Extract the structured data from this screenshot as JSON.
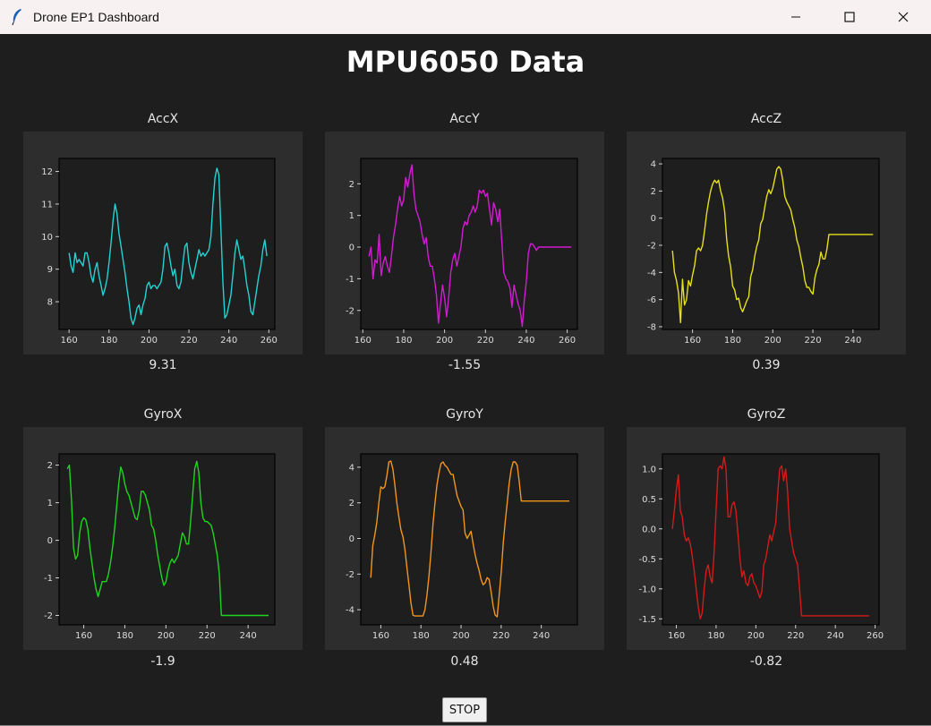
{
  "window": {
    "title": "Drone EP1 Dashboard",
    "icons": {
      "app": "feather-icon",
      "minimize": "minimize-icon",
      "maximize": "maximize-icon",
      "close": "close-icon"
    }
  },
  "main_title": "MPU6050 Data",
  "stop_label": "STOP",
  "chart_data": [
    {
      "type": "line",
      "title": "AccX",
      "value_label": "9.31",
      "color": "#22d3d3",
      "xlim": [
        155,
        263
      ],
      "ylim": [
        7.15,
        12.4
      ],
      "xticks": [
        160,
        180,
        200,
        220,
        240,
        260
      ],
      "yticks": [
        8,
        9,
        10,
        11,
        12
      ],
      "x": [
        160,
        161,
        162,
        163,
        164,
        165,
        166,
        167,
        168,
        169,
        170,
        171,
        172,
        173,
        174,
        175,
        176,
        177,
        178,
        179,
        180,
        181,
        182,
        183,
        184,
        185,
        186,
        187,
        188,
        189,
        190,
        191,
        192,
        193,
        194,
        195,
        196,
        197,
        198,
        199,
        200,
        201,
        202,
        203,
        204,
        205,
        206,
        207,
        208,
        209,
        210,
        211,
        212,
        213,
        214,
        215,
        216,
        217,
        218,
        219,
        220,
        221,
        222,
        223,
        224,
        225,
        226,
        227,
        228,
        229,
        230,
        231,
        232,
        233,
        234,
        235,
        236,
        237,
        238,
        239,
        240,
        241,
        242,
        243,
        244,
        245,
        246,
        247,
        248,
        249,
        250,
        251,
        252,
        253,
        254,
        255,
        256,
        257,
        258,
        259
      ],
      "y": [
        9.5,
        9.1,
        8.9,
        9.5,
        9.2,
        9.3,
        9.2,
        9.1,
        9.5,
        9.5,
        9.2,
        8.8,
        8.6,
        9.0,
        9.2,
        8.8,
        8.5,
        8.2,
        8.4,
        8.7,
        9.2,
        9.8,
        10.5,
        11.0,
        10.7,
        10.1,
        9.7,
        9.3,
        8.9,
        8.4,
        8.0,
        7.5,
        7.3,
        7.5,
        7.8,
        7.9,
        7.6,
        7.9,
        8.1,
        8.5,
        8.6,
        8.4,
        8.5,
        8.5,
        8.4,
        8.5,
        8.6,
        9.0,
        9.7,
        9.8,
        9.5,
        9.1,
        8.8,
        9.0,
        8.5,
        8.4,
        8.6,
        9.2,
        9.7,
        9.8,
        9.2,
        8.9,
        8.7,
        9.0,
        9.3,
        9.6,
        9.4,
        9.5,
        9.4,
        9.5,
        9.6,
        10.0,
        11.0,
        11.8,
        12.1,
        11.9,
        10.2,
        8.6,
        7.5,
        7.6,
        7.9,
        8.2,
        8.8,
        9.5,
        9.9,
        9.6,
        9.3,
        9.4,
        9.0,
        8.5,
        8.2,
        7.7,
        7.6,
        8.0,
        8.4,
        8.8,
        9.1,
        9.6,
        9.9,
        9.4
      ]
    },
    {
      "type": "line",
      "title": "AccY",
      "value_label": "-1.55",
      "color": "#d41ad4",
      "xlim": [
        159,
        265
      ],
      "ylim": [
        -2.6,
        2.8
      ],
      "xticks": [
        160,
        180,
        200,
        220,
        240,
        260
      ],
      "yticks": [
        -2,
        -1,
        0,
        1,
        2
      ],
      "x": [
        163,
        164,
        165,
        166,
        167,
        168,
        169,
        170,
        171,
        172,
        173,
        174,
        175,
        176,
        177,
        178,
        179,
        180,
        181,
        182,
        183,
        184,
        185,
        186,
        187,
        188,
        189,
        190,
        191,
        192,
        193,
        194,
        195,
        196,
        197,
        198,
        199,
        200,
        201,
        202,
        203,
        204,
        205,
        206,
        207,
        208,
        209,
        210,
        211,
        212,
        213,
        214,
        215,
        216,
        217,
        218,
        219,
        220,
        221,
        222,
        223,
        224,
        225,
        226,
        227,
        228,
        229,
        230,
        231,
        232,
        233,
        234,
        235,
        236,
        237,
        238,
        239,
        240,
        241,
        242,
        243,
        244,
        245,
        246,
        247,
        248,
        249,
        250,
        251,
        252,
        253,
        254,
        255,
        256,
        257,
        258,
        259,
        260,
        261,
        262
      ],
      "y": [
        -0.3,
        0.0,
        -1.0,
        -0.4,
        -0.5,
        0.4,
        -0.9,
        -0.5,
        -0.3,
        -0.6,
        -0.8,
        -0.3,
        0.3,
        0.7,
        1.2,
        1.6,
        1.3,
        1.5,
        2.2,
        1.9,
        2.3,
        2.6,
        1.7,
        1.2,
        1.0,
        0.8,
        0.4,
        0.1,
        0.3,
        -0.3,
        -0.6,
        -0.6,
        -1.0,
        -1.5,
        -2.4,
        -1.8,
        -1.2,
        -1.6,
        -2.2,
        -1.6,
        -0.8,
        -0.4,
        -0.2,
        -0.6,
        -0.3,
        0.0,
        0.6,
        0.8,
        0.7,
        1.0,
        1.1,
        1.3,
        1.1,
        1.3,
        1.8,
        1.7,
        1.8,
        1.6,
        1.7,
        1.2,
        0.7,
        1.4,
        1.2,
        0.8,
        1.2,
        0.2,
        -0.8,
        -1.0,
        -1.1,
        -1.3,
        -1.9,
        -1.2,
        -1.5,
        -1.8,
        -2.0,
        -2.5,
        -1.7,
        -1.1,
        -0.2,
        0.1,
        0.1,
        0.0,
        -0.1,
        0.0,
        0.0,
        0.0,
        0.0,
        0.0,
        0.0,
        0.0,
        0.0,
        0.0,
        0.0,
        0.0,
        0.0,
        0.0,
        0.0,
        0.0,
        0.0,
        0.0
      ]
    },
    {
      "type": "line",
      "title": "AccZ",
      "value_label": "0.39",
      "color": "#e6e01a",
      "xlim": [
        145,
        253
      ],
      "ylim": [
        -8.2,
        4.4
      ],
      "xticks": [
        160,
        180,
        200,
        220,
        240
      ],
      "yticks": [
        -8,
        -6,
        -4,
        -2,
        0,
        2,
        4
      ],
      "x": [
        150,
        151,
        152,
        153,
        154,
        155,
        156,
        157,
        158,
        159,
        160,
        161,
        162,
        163,
        164,
        165,
        166,
        167,
        168,
        169,
        170,
        171,
        172,
        173,
        174,
        175,
        176,
        177,
        178,
        179,
        180,
        181,
        182,
        183,
        184,
        185,
        186,
        187,
        188,
        189,
        190,
        191,
        192,
        193,
        194,
        195,
        196,
        197,
        198,
        199,
        200,
        201,
        202,
        203,
        204,
        205,
        206,
        207,
        208,
        209,
        210,
        211,
        212,
        213,
        214,
        215,
        216,
        217,
        218,
        219,
        220,
        221,
        222,
        223,
        224,
        225,
        226,
        227,
        228,
        229,
        230,
        231,
        232,
        233,
        234,
        235,
        236,
        237,
        238,
        239,
        240,
        241,
        242,
        243,
        244,
        245,
        246,
        247,
        248,
        249,
        250
      ],
      "y": [
        -2.4,
        -4.0,
        -4.6,
        -5.5,
        -7.7,
        -4.5,
        -6.4,
        -6.0,
        -4.6,
        -5.0,
        -4.2,
        -3.5,
        -2.4,
        -2.2,
        -2.4,
        -2.0,
        -0.9,
        0.3,
        1.2,
        2.0,
        2.5,
        2.8,
        2.6,
        2.8,
        2.0,
        1.5,
        0.5,
        -1.5,
        -2.8,
        -3.6,
        -5.0,
        -5.3,
        -6.0,
        -5.9,
        -6.6,
        -6.9,
        -6.5,
        -6.1,
        -5.8,
        -4.3,
        -3.8,
        -2.8,
        -2.1,
        -1.6,
        -0.4,
        -0.1,
        0.8,
        1.6,
        2.1,
        1.8,
        2.2,
        2.9,
        3.6,
        3.8,
        3.6,
        2.8,
        1.6,
        1.2,
        0.9,
        0.6,
        -0.1,
        -0.7,
        -1.6,
        -2.1,
        -2.9,
        -3.6,
        -4.6,
        -5.1,
        -5.1,
        -5.4,
        -5.6,
        -4.4,
        -3.8,
        -3.4,
        -2.5,
        -3.0,
        -3.0,
        -2.3,
        -1.2,
        -1.2,
        -1.2,
        -1.2,
        -1.2,
        -1.2,
        -1.2,
        -1.2,
        -1.2,
        -1.2,
        -1.2,
        -1.2,
        -1.2,
        -1.2,
        -1.2,
        -1.2,
        -1.2,
        -1.2,
        -1.2,
        -1.2,
        -1.2,
        -1.2,
        -1.2
      ]
    },
    {
      "type": "line",
      "title": "GyroX",
      "value_label": "-1.9",
      "color": "#1ed41e",
      "xlim": [
        148,
        253
      ],
      "ylim": [
        -2.25,
        2.3
      ],
      "xticks": [
        160,
        180,
        200,
        220,
        240
      ],
      "yticks": [
        -2,
        -1,
        0,
        1,
        2
      ],
      "x": [
        152,
        153,
        154,
        155,
        156,
        157,
        158,
        159,
        160,
        161,
        162,
        163,
        164,
        165,
        166,
        167,
        168,
        169,
        170,
        171,
        172,
        173,
        174,
        175,
        176,
        177,
        178,
        179,
        180,
        181,
        182,
        183,
        184,
        185,
        186,
        187,
        188,
        189,
        190,
        191,
        192,
        193,
        194,
        195,
        196,
        197,
        198,
        199,
        200,
        201,
        202,
        203,
        204,
        205,
        206,
        207,
        208,
        209,
        210,
        211,
        212,
        213,
        214,
        215,
        216,
        217,
        218,
        219,
        220,
        221,
        222,
        223,
        224,
        225,
        226,
        227,
        228,
        229,
        230,
        231,
        232,
        233,
        234,
        235,
        236,
        237,
        238,
        239,
        240,
        241,
        242,
        243,
        244,
        245,
        246,
        247,
        248,
        249,
        250,
        251
      ],
      "y": [
        1.9,
        2.0,
        1.1,
        -0.2,
        -0.5,
        -0.4,
        0.2,
        0.5,
        0.6,
        0.55,
        0.3,
        -0.2,
        -0.6,
        -1.0,
        -1.3,
        -1.5,
        -1.3,
        -1.1,
        -1.1,
        -1.1,
        -0.9,
        -0.6,
        -0.2,
        0.3,
        0.9,
        1.5,
        1.95,
        1.8,
        1.5,
        1.3,
        1.2,
        1.0,
        0.8,
        0.6,
        0.55,
        0.8,
        1.3,
        1.3,
        1.2,
        1.0,
        0.8,
        0.4,
        0.3,
        0.0,
        -0.4,
        -0.7,
        -1.0,
        -1.2,
        -1.1,
        -0.8,
        -0.6,
        -0.5,
        -0.6,
        -0.5,
        -0.4,
        -0.1,
        0.2,
        0.1,
        -0.1,
        -0.1,
        0.5,
        1.2,
        1.9,
        2.1,
        1.8,
        1.0,
        0.6,
        0.5,
        0.5,
        0.45,
        0.4,
        0.2,
        -0.1,
        -0.4,
        -0.9,
        -2.0,
        -2.0,
        -2.0,
        -2.0,
        -2.0,
        -2.0,
        -2.0,
        -2.0,
        -2.0,
        -2.0,
        -2.0,
        -2.0,
        -2.0,
        -2.0,
        -2.0,
        -2.0,
        -2.0,
        -2.0,
        -2.0,
        -2.0,
        -2.0,
        -2.0,
        -2.0,
        -2.0,
        -2.0
      ]
    },
    {
      "type": "line",
      "title": "GyroY",
      "value_label": "0.48",
      "color": "#f0961e",
      "xlim": [
        150,
        258
      ],
      "ylim": [
        -4.85,
        4.75
      ],
      "xticks": [
        160,
        180,
        200,
        220,
        240
      ],
      "yticks": [
        -4,
        -2,
        0,
        2,
        4
      ],
      "x": [
        155,
        156,
        157,
        158,
        159,
        160,
        161,
        162,
        163,
        164,
        165,
        166,
        167,
        168,
        169,
        170,
        171,
        172,
        173,
        174,
        175,
        176,
        177,
        178,
        179,
        180,
        181,
        182,
        183,
        184,
        185,
        186,
        187,
        188,
        189,
        190,
        191,
        192,
        193,
        194,
        195,
        196,
        197,
        198,
        199,
        200,
        201,
        202,
        203,
        204,
        205,
        206,
        207,
        208,
        209,
        210,
        211,
        212,
        213,
        214,
        215,
        216,
        217,
        218,
        219,
        220,
        221,
        222,
        223,
        224,
        225,
        226,
        227,
        228,
        229,
        230,
        231,
        232,
        233,
        234,
        235,
        236,
        237,
        238,
        239,
        240,
        241,
        242,
        243,
        244,
        245,
        246,
        247,
        248,
        249,
        250,
        251,
        252,
        253,
        254
      ],
      "y": [
        -2.2,
        -0.4,
        0.2,
        0.9,
        2.0,
        2.9,
        2.8,
        2.9,
        3.5,
        4.3,
        4.35,
        3.9,
        3.0,
        2.0,
        1.2,
        0.5,
        0.1,
        -0.6,
        -1.6,
        -2.6,
        -3.6,
        -4.3,
        -4.35,
        -4.35,
        -4.35,
        -4.35,
        -4.35,
        -4.0,
        -3.2,
        -2.1,
        -0.8,
        0.8,
        2.0,
        3.0,
        3.7,
        4.2,
        4.3,
        4.1,
        4.0,
        3.8,
        3.6,
        3.6,
        3.0,
        2.4,
        2.1,
        1.8,
        1.6,
        0.3,
        0.0,
        0.2,
        0.4,
        -0.3,
        -0.9,
        -1.4,
        -1.8,
        -2.3,
        -2.6,
        -2.5,
        -2.2,
        -2.3,
        -3.0,
        -3.8,
        -4.3,
        -4.4,
        -3.2,
        -1.9,
        -0.3,
        0.9,
        2.0,
        3.1,
        3.9,
        4.3,
        4.3,
        4.1,
        3.2,
        2.1,
        2.1,
        2.1,
        2.1,
        2.1,
        2.1,
        2.1,
        2.1,
        2.1,
        2.1,
        2.1,
        2.1,
        2.1,
        2.1,
        2.1,
        2.1,
        2.1,
        2.1,
        2.1,
        2.1,
        2.1,
        2.1,
        2.1,
        2.1,
        2.1
      ]
    },
    {
      "type": "line",
      "title": "GyroZ",
      "value_label": "-0.82",
      "color": "#d41a1a",
      "xlim": [
        153,
        262
      ],
      "ylim": [
        -1.6,
        1.25
      ],
      "xticks": [
        160,
        180,
        200,
        220,
        240,
        260
      ],
      "yticks": [
        -1.5,
        -1.0,
        -0.5,
        0.0,
        0.5,
        1.0
      ],
      "x": [
        158,
        159,
        160,
        161,
        162,
        163,
        164,
        165,
        166,
        167,
        168,
        169,
        170,
        171,
        172,
        173,
        174,
        175,
        176,
        177,
        178,
        179,
        180,
        181,
        182,
        183,
        184,
        185,
        186,
        187,
        188,
        189,
        190,
        191,
        192,
        193,
        194,
        195,
        196,
        197,
        198,
        199,
        200,
        201,
        202,
        203,
        204,
        205,
        206,
        207,
        208,
        209,
        210,
        211,
        212,
        213,
        214,
        215,
        216,
        217,
        218,
        219,
        220,
        221,
        222,
        223,
        224,
        225,
        226,
        227,
        228,
        229,
        230,
        231,
        232,
        233,
        234,
        235,
        236,
        237,
        238,
        239,
        240,
        241,
        242,
        243,
        244,
        245,
        246,
        247,
        248,
        249,
        250,
        251,
        252,
        253,
        254,
        255,
        256,
        257
      ],
      "y": [
        0.0,
        0.3,
        0.65,
        0.9,
        0.3,
        0.2,
        -0.1,
        -0.2,
        -0.15,
        -0.25,
        -0.45,
        -0.7,
        -1.0,
        -1.3,
        -1.5,
        -1.4,
        -1.0,
        -0.7,
        -0.6,
        -0.8,
        -0.9,
        -0.4,
        0.3,
        1.0,
        1.05,
        1.0,
        1.2,
        1.0,
        0.2,
        0.2,
        0.4,
        0.45,
        0.3,
        -0.1,
        -0.5,
        -0.8,
        -0.7,
        -0.9,
        -0.95,
        -0.8,
        -0.75,
        -0.9,
        -0.95,
        -1.05,
        -1.15,
        -1.05,
        -0.6,
        -0.5,
        -0.3,
        -0.1,
        -0.2,
        -0.05,
        0.1,
        0.6,
        1.0,
        1.05,
        0.8,
        1.0,
        0.6,
        0.0,
        -0.2,
        -0.4,
        -0.5,
        -0.6,
        -1.0,
        -1.45,
        -1.45,
        -1.45,
        -1.45,
        -1.45,
        -1.45,
        -1.45,
        -1.45,
        -1.45,
        -1.45,
        -1.45,
        -1.45,
        -1.45,
        -1.45,
        -1.45,
        -1.45,
        -1.45,
        -1.45,
        -1.45,
        -1.45,
        -1.45,
        -1.45,
        -1.45,
        -1.45,
        -1.45,
        -1.45,
        -1.45,
        -1.45,
        -1.45,
        -1.45,
        -1.45,
        -1.45,
        -1.45,
        -1.45,
        -1.45
      ]
    }
  ]
}
